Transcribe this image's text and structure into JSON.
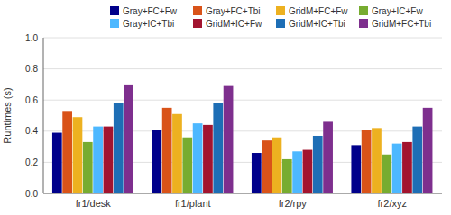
{
  "chart_data": {
    "type": "bar",
    "categories": [
      "fr1/desk",
      "fr1/plant",
      "fr2/rpy",
      "fr2/xyz"
    ],
    "series": [
      {
        "name": "Gray+FC+Fw",
        "color": "#00008b",
        "values": [
          0.39,
          0.41,
          0.26,
          0.31
        ]
      },
      {
        "name": "Gray+FC+Tbi",
        "color": "#d95319",
        "values": [
          0.53,
          0.55,
          0.34,
          0.41
        ]
      },
      {
        "name": "GridM+FC+Fw",
        "color": "#edb120",
        "values": [
          0.49,
          0.51,
          0.36,
          0.42
        ]
      },
      {
        "name": "Gray+IC+Fw",
        "color": "#77ac30",
        "values": [
          0.33,
          0.36,
          0.22,
          0.25
        ]
      },
      {
        "name": "Gray+IC+Tbi",
        "color": "#4db8ff",
        "values": [
          0.43,
          0.45,
          0.27,
          0.32
        ]
      },
      {
        "name": "GridM+IC+Fw",
        "color": "#a2142f",
        "values": [
          0.43,
          0.44,
          0.28,
          0.33
        ]
      },
      {
        "name": "GridM+IC+Tbi",
        "color": "#1e6eb5",
        "values": [
          0.58,
          0.58,
          0.37,
          0.43
        ]
      },
      {
        "name": "GridM+FC+Tbi",
        "color": "#7e2f8e",
        "values": [
          0.7,
          0.69,
          0.46,
          0.55
        ]
      }
    ],
    "ylabel": "Runtimes (s)",
    "ylim": [
      0,
      1.0
    ],
    "yticks": [
      {
        "value": 0,
        "label": "0.0"
      },
      0.2,
      0.4,
      0.6,
      0.8,
      {
        "value": 1.0,
        "label": "1.0"
      }
    ],
    "grid": true,
    "legend": "upper right"
  }
}
